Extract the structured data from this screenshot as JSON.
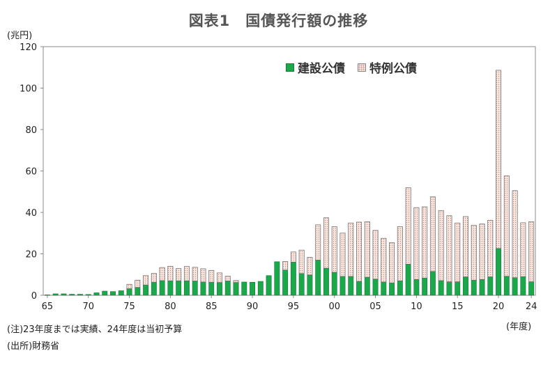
{
  "title": "図表1　国債発行額の推移",
  "y_unit": "(兆円)",
  "x_unit": "(年度)",
  "notes": [
    "(注)23年度までは実績、24年度は当初予算",
    "(出所)財務省"
  ],
  "colors": {
    "construction": "#1aa84a",
    "special": "#f7e4dc"
  },
  "chart_data": {
    "type": "bar",
    "stacked": true,
    "title": "図表1　国債発行額の推移",
    "ylabel": "(兆円)",
    "xlabel": "(年度)",
    "ylim": [
      0,
      120
    ],
    "yticks": [
      0,
      20,
      40,
      60,
      80,
      100,
      120
    ],
    "xtick_labels": [
      "65",
      "70",
      "75",
      "80",
      "85",
      "90",
      "95",
      "00",
      "05",
      "10",
      "15",
      "20",
      "24"
    ],
    "legend_position": "top-right",
    "categories": [
      1965,
      1966,
      1967,
      1968,
      1969,
      1970,
      1971,
      1972,
      1973,
      1974,
      1975,
      1976,
      1977,
      1978,
      1979,
      1980,
      1981,
      1982,
      1983,
      1984,
      1985,
      1986,
      1987,
      1988,
      1989,
      1990,
      1991,
      1992,
      1993,
      1994,
      1995,
      1996,
      1997,
      1998,
      1999,
      2000,
      2001,
      2002,
      2003,
      2004,
      2005,
      2006,
      2007,
      2008,
      2009,
      2010,
      2011,
      2012,
      2013,
      2014,
      2015,
      2016,
      2017,
      2018,
      2019,
      2020,
      2021,
      2022,
      2023,
      2024
    ],
    "series": [
      {
        "name": "建設公債",
        "pattern": "solid",
        "values": [
          0.2,
          0.7,
          0.7,
          0.5,
          0.5,
          0.4,
          1.2,
          2.0,
          1.8,
          2.2,
          3.2,
          3.8,
          5.0,
          6.3,
          7.1,
          7.0,
          7.0,
          7.0,
          6.9,
          6.4,
          6.3,
          6.2,
          6.9,
          6.2,
          6.4,
          6.3,
          6.7,
          9.5,
          16.2,
          12.2,
          16.0,
          10.5,
          9.8,
          17.0,
          13.1,
          11.1,
          9.1,
          9.1,
          6.7,
          8.7,
          7.8,
          6.4,
          6.0,
          7.0,
          15.0,
          7.6,
          8.3,
          11.5,
          7.1,
          6.5,
          6.5,
          8.9,
          7.3,
          7.6,
          8.9,
          22.6,
          9.2,
          8.5,
          9.0,
          6.5
        ]
      },
      {
        "name": "特例公債",
        "pattern": "dotted",
        "values": [
          0,
          0,
          0,
          0,
          0,
          0,
          0,
          0,
          0,
          0,
          2.1,
          3.5,
          4.5,
          4.3,
          6.3,
          7.0,
          5.9,
          6.9,
          6.6,
          6.4,
          5.7,
          4.6,
          2.3,
          0.9,
          0,
          0,
          0,
          0,
          0,
          4.1,
          4.9,
          11.3,
          8.5,
          17.0,
          24.3,
          22.0,
          20.9,
          25.8,
          28.6,
          26.8,
          23.5,
          21.1,
          19.4,
          26.1,
          36.9,
          34.7,
          34.4,
          36.0,
          33.8,
          31.9,
          28.4,
          29.1,
          26.5,
          26.8,
          27.3,
          86.0,
          48.4,
          42.0,
          26.0,
          29.0
        ]
      }
    ]
  }
}
